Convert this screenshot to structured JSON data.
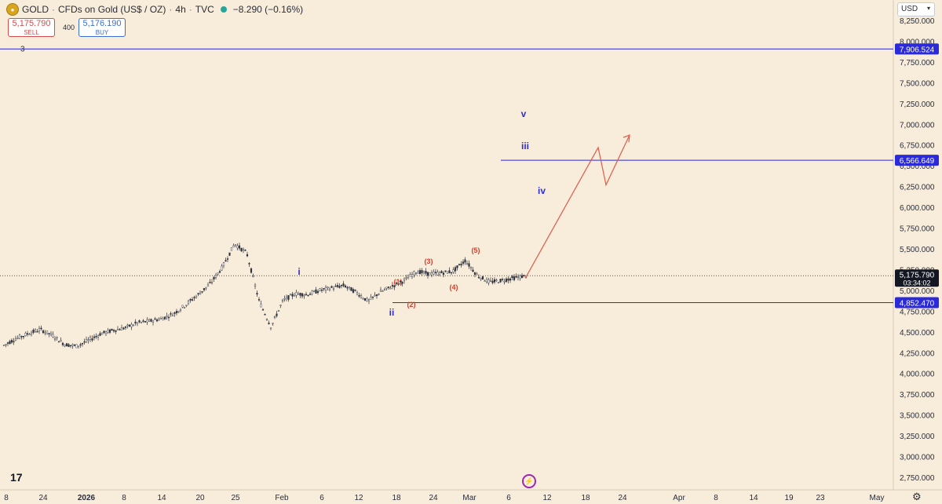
{
  "header": {
    "logo_icon": "gold-coin-icon",
    "symbol": "GOLD",
    "name": "CFDs on Gold (US$ / OZ)",
    "interval": "4h",
    "source": "TVC",
    "change": "−8.290 (−0.16%)",
    "status_color": "#26a69a"
  },
  "trade": {
    "sell_price": "5,175.790",
    "sell_label": "SELL",
    "spread": "400",
    "buy_price": "5,176.190",
    "buy_label": "BUY"
  },
  "currency": "USD",
  "toolbar": {
    "tv_logo": "17",
    "flash_icon": "lightning-icon",
    "gear_icon": "gear-icon"
  },
  "colors": {
    "background": "#f8ecda",
    "level_line": "#2a2ad9",
    "projection": "#e05a4a",
    "wave_blue": "#3030c8",
    "wave_red": "#d04030",
    "price_bg": "#131722"
  },
  "chart_data": {
    "type": "candlestick",
    "y_range": [
      2625,
      8300
    ],
    "y_ticks": [
      2750,
      3000,
      3250,
      3500,
      3750,
      4000,
      4250,
      4500,
      4750,
      5000,
      5250,
      5500,
      5750,
      6000,
      6250,
      6500,
      6750,
      7000,
      7250,
      7500,
      7750,
      8000,
      8250
    ],
    "y_tick_labels": [
      "2,750.000",
      "3,000.000",
      "3,250.000",
      "3,500.000",
      "3,750.000",
      "4,000.000",
      "4,250.000",
      "4,500.000",
      "4,750.000",
      "5,000.000",
      "5,250.000",
      "5,500.000",
      "5,750.000",
      "6,000.000",
      "6,250.000",
      "6,500.000",
      "6,750.000",
      "7,000.000",
      "7,250.000",
      "7,500.000",
      "7,750.000",
      "8,000.000",
      "8,250.000"
    ],
    "x_tick_labels": [
      "8",
      "24",
      "2026",
      "8",
      "14",
      "20",
      "25",
      "Feb",
      "6",
      "12",
      "18",
      "24",
      "Mar",
      "6",
      "12",
      "18",
      "24",
      "Apr",
      "8",
      "14",
      "19",
      "23",
      "May"
    ],
    "x_tick_bold": [
      false,
      false,
      true,
      false,
      false,
      false,
      false,
      false,
      false,
      false,
      false,
      false,
      false,
      false,
      false,
      false,
      false,
      false,
      false,
      false,
      false,
      false,
      false
    ],
    "price_path": [
      4340,
      4420,
      4480,
      4530,
      4460,
      4350,
      4330,
      4400,
      4480,
      4520,
      4550,
      4610,
      4630,
      4660,
      4720,
      4830,
      4950,
      5080,
      5280,
      5560,
      5450,
      4880,
      4560,
      4880,
      4960,
      4950,
      5000,
      5030,
      5060,
      4980,
      4870,
      4980,
      5050,
      5120,
      5230,
      5200,
      5210,
      5230,
      5360,
      5180,
      5100,
      5120,
      5150,
      5175
    ],
    "horizontal_levels": [
      {
        "label": "7,906.524",
        "value": 7906.524,
        "note": "3",
        "full_width": true
      },
      {
        "label": "6,566.649",
        "value": 6566.649,
        "full_width": false
      },
      {
        "label": "4,852.470",
        "value": 4852.47,
        "full_width": false
      }
    ],
    "current_price": {
      "value": 5175.79,
      "label": "5,175.790",
      "countdown": "03:34:02"
    },
    "projection_path": [
      5160,
      6720,
      6270,
      6870
    ],
    "wave_labels": [
      {
        "text": "i",
        "color": "blue"
      },
      {
        "text": "ii",
        "color": "blue"
      },
      {
        "text": "iii",
        "color": "blue"
      },
      {
        "text": "iv",
        "color": "blue"
      },
      {
        "text": "v",
        "color": "blue"
      },
      {
        "text": "(1)",
        "color": "red"
      },
      {
        "text": "(2)",
        "color": "red"
      },
      {
        "text": "(3)",
        "color": "red"
      },
      {
        "text": "(4)",
        "color": "red"
      },
      {
        "text": "(5)",
        "color": "red"
      }
    ]
  }
}
